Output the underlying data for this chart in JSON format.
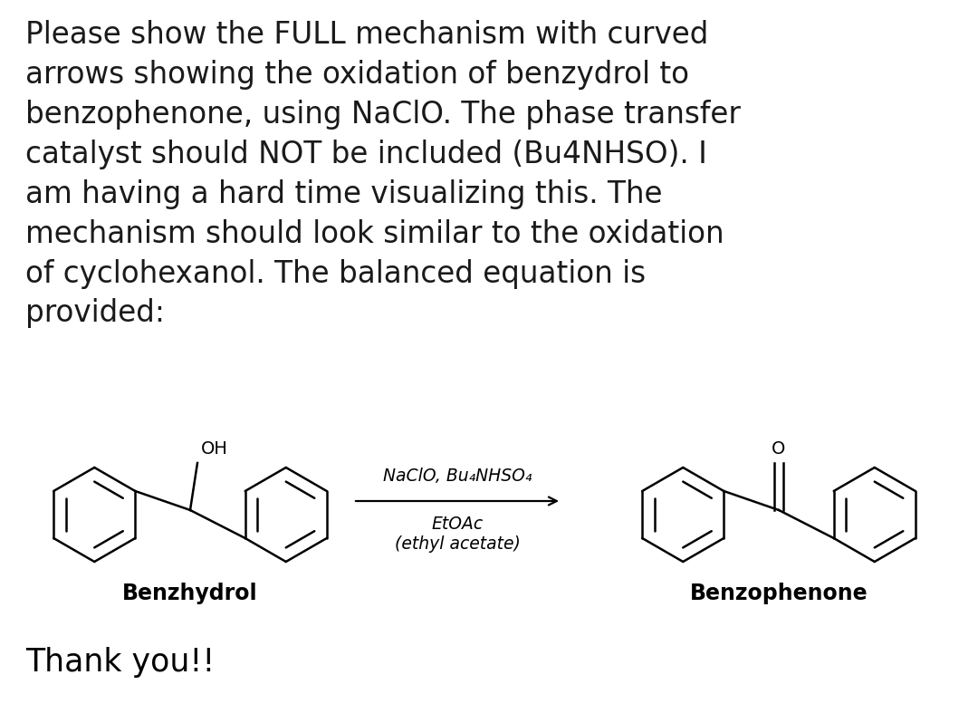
{
  "title_text": "Please show the FULL mechanism with curved\narrows showing the oxidation of benzydrol to\nbenzophenone, using NaClO. The phase transfer\ncatalyst should NOT be included (Bu4NHSO). I\nam having a hard time visualizing this. The\nmechanism should look similar to the oxidation\nof cyclohexanol. The balanced equation is\nprovided:",
  "reagent_line1": "NaClO, Bu₄NHSO₄",
  "reagent_line2": "EtOAc",
  "reagent_line3": "(ethyl acetate)",
  "label_left": "Benzhydrol",
  "label_right": "Benzophenone",
  "thank_you": "Thank you!!",
  "bg_color": "#ffffff",
  "text_color": "#1a1a1a",
  "title_fontsize": 23.5,
  "label_fontsize": 17,
  "reagent_fontsize": 13.5,
  "thank_you_fontsize": 25,
  "oh_fontsize": 14,
  "o_fontsize": 14
}
